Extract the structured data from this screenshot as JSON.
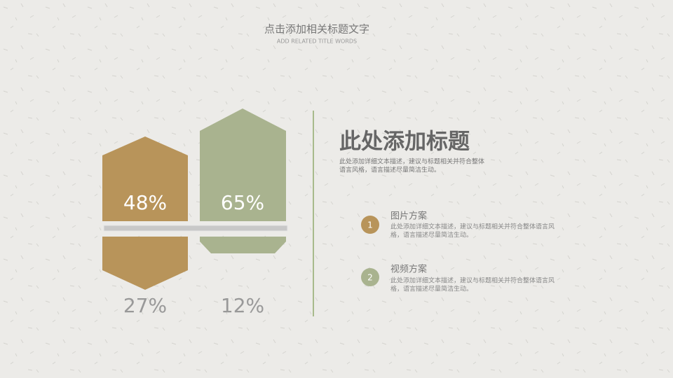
{
  "header": {
    "title": "点击添加相关标题文字",
    "subtitle": "ADD RELATED TITLE WORDS"
  },
  "figures": [
    {
      "top_label": "48%",
      "bottom_label": "27%",
      "color": "#b8945a"
    },
    {
      "top_label": "65%",
      "bottom_label": "12%",
      "color": "#a9b38f"
    }
  ],
  "section": {
    "title": "此处添加标题",
    "description": [
      "此处添加详细文本描述，建议与标题相关并符合整体",
      "语言风格，语言描述尽量简洁生动。"
    ]
  },
  "items": [
    {
      "number": "1",
      "title": "图片方案",
      "description": [
        "此处添加详细文本描述，建议与标题相关并符合整体语言风",
        "格，语言描述尽量简洁生动。"
      ],
      "color": "#b8945a"
    },
    {
      "number": "2",
      "title": "视频方案",
      "description": [
        "此处添加详细文本描述，建议与标题相关并符合整体语言风",
        "格，语言描述尽量简洁生动。"
      ],
      "color": "#a9b38f"
    }
  ]
}
